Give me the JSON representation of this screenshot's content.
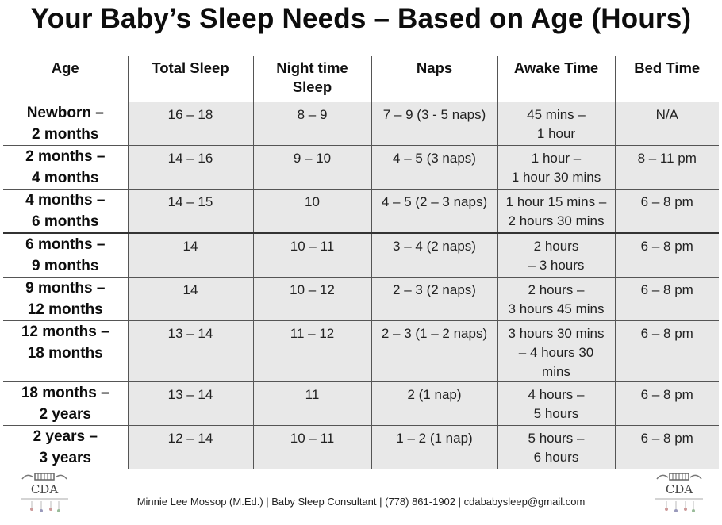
{
  "title": "Your Baby’s Sleep Needs – Based on Age (Hours)",
  "table": {
    "headers": [
      [
        "Age"
      ],
      [
        "Total Sleep"
      ],
      [
        "Night time",
        "Sleep"
      ],
      [
        "Naps"
      ],
      [
        "Awake Time"
      ],
      [
        "Bed Time"
      ]
    ],
    "rows": [
      {
        "age": [
          "Newborn –",
          "2 months"
        ],
        "total": [
          "16 – 18"
        ],
        "night": [
          "8 – 9"
        ],
        "naps": [
          "7 – 9 (3 - 5 naps)"
        ],
        "awake": [
          "45 mins –",
          "1 hour"
        ],
        "bed": [
          "N/A"
        ]
      },
      {
        "age": [
          "2 months –",
          "4 months"
        ],
        "total": [
          "14 – 16"
        ],
        "night": [
          "9 – 10"
        ],
        "naps": [
          "4 – 5 (3 naps)"
        ],
        "awake": [
          "1 hour –",
          "1 hour 30 mins"
        ],
        "bed": [
          "8 – 11 pm"
        ]
      },
      {
        "age": [
          "4 months –",
          "6 months"
        ],
        "total": [
          "14 – 15"
        ],
        "night": [
          "10"
        ],
        "naps": [
          "4 – 5 (2 – 3 naps)"
        ],
        "awake": [
          "1 hour 15 mins –",
          "2 hours 30 mins"
        ],
        "bed": [
          "6 – 8 pm"
        ]
      },
      {
        "age": [
          "6 months –",
          "9 months"
        ],
        "total": [
          "14"
        ],
        "night": [
          "10 – 11"
        ],
        "naps": [
          "3 – 4 (2 naps)"
        ],
        "awake": [
          "2 hours",
          "– 3 hours"
        ],
        "bed": [
          "6 – 8 pm"
        ]
      },
      {
        "age": [
          "9 months –",
          "12 months"
        ],
        "total": [
          "14"
        ],
        "night": [
          "10 – 12"
        ],
        "naps": [
          "2 – 3 (2 naps)"
        ],
        "awake": [
          "2 hours –",
          "3 hours 45 mins"
        ],
        "bed": [
          "6 – 8 pm"
        ]
      },
      {
        "age": [
          "12 months –",
          "18 months"
        ],
        "total": [
          "13 – 14"
        ],
        "night": [
          "11 – 12"
        ],
        "naps": [
          "2 – 3 (1 – 2 naps)"
        ],
        "awake": [
          "3 hours 30 mins",
          "– 4 hours 30",
          "mins"
        ],
        "bed": [
          "6 – 8 pm"
        ]
      },
      {
        "age": [
          "18 months –",
          "2 years"
        ],
        "total": [
          "13 – 14"
        ],
        "night": [
          "11"
        ],
        "naps": [
          "2 (1 nap)"
        ],
        "awake": [
          "4 hours –",
          "5 hours"
        ],
        "bed": [
          "6 – 8 pm"
        ]
      },
      {
        "age": [
          "2 years –",
          "3 years"
        ],
        "total": [
          "12 – 14"
        ],
        "night": [
          "10 – 11"
        ],
        "naps": [
          "1 – 2 (1 nap)"
        ],
        "awake": [
          "5 hours –",
          "6 hours"
        ],
        "bed": [
          "6 – 8 pm"
        ]
      }
    ]
  },
  "logo": {
    "text": "CDA",
    "icon": "crib-logo-icon"
  },
  "footer": "Minnie Lee Mossop (M.Ed.) | Baby Sleep Consultant | (778) 861-1902 | cdababysleep@gmail.com"
}
